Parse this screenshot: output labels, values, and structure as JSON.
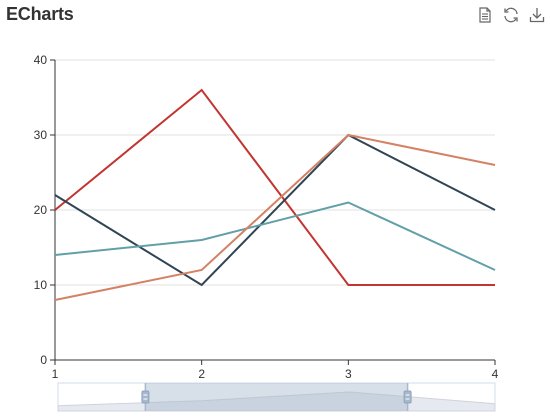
{
  "header": {
    "title": "ECharts"
  },
  "toolbox": {
    "items": [
      {
        "name": "data-view",
        "icon": "document-icon"
      },
      {
        "name": "restore",
        "icon": "refresh-icon"
      },
      {
        "name": "save-as-image",
        "icon": "download-icon"
      }
    ],
    "icon_color": "#666666"
  },
  "chart_data": {
    "type": "line",
    "title": "ECharts",
    "x": [
      1,
      2,
      3,
      4
    ],
    "xlabel": "",
    "ylabel": "",
    "ylim": [
      0,
      40
    ],
    "yticks": [
      0,
      10,
      20,
      30,
      40
    ],
    "grid": true,
    "legend": "none",
    "series": [
      {
        "values": [
          20,
          36,
          10,
          10
        ],
        "color": "#c23531"
      },
      {
        "values": [
          22,
          10,
          30,
          20
        ],
        "color": "#2f4554"
      },
      {
        "values": [
          14,
          16,
          21,
          12
        ],
        "color": "#61a0a8"
      },
      {
        "values": [
          8,
          12,
          30,
          26
        ],
        "color": "#d48265"
      }
    ],
    "datazoom": {
      "start_percent": 20,
      "end_percent": 80
    }
  }
}
